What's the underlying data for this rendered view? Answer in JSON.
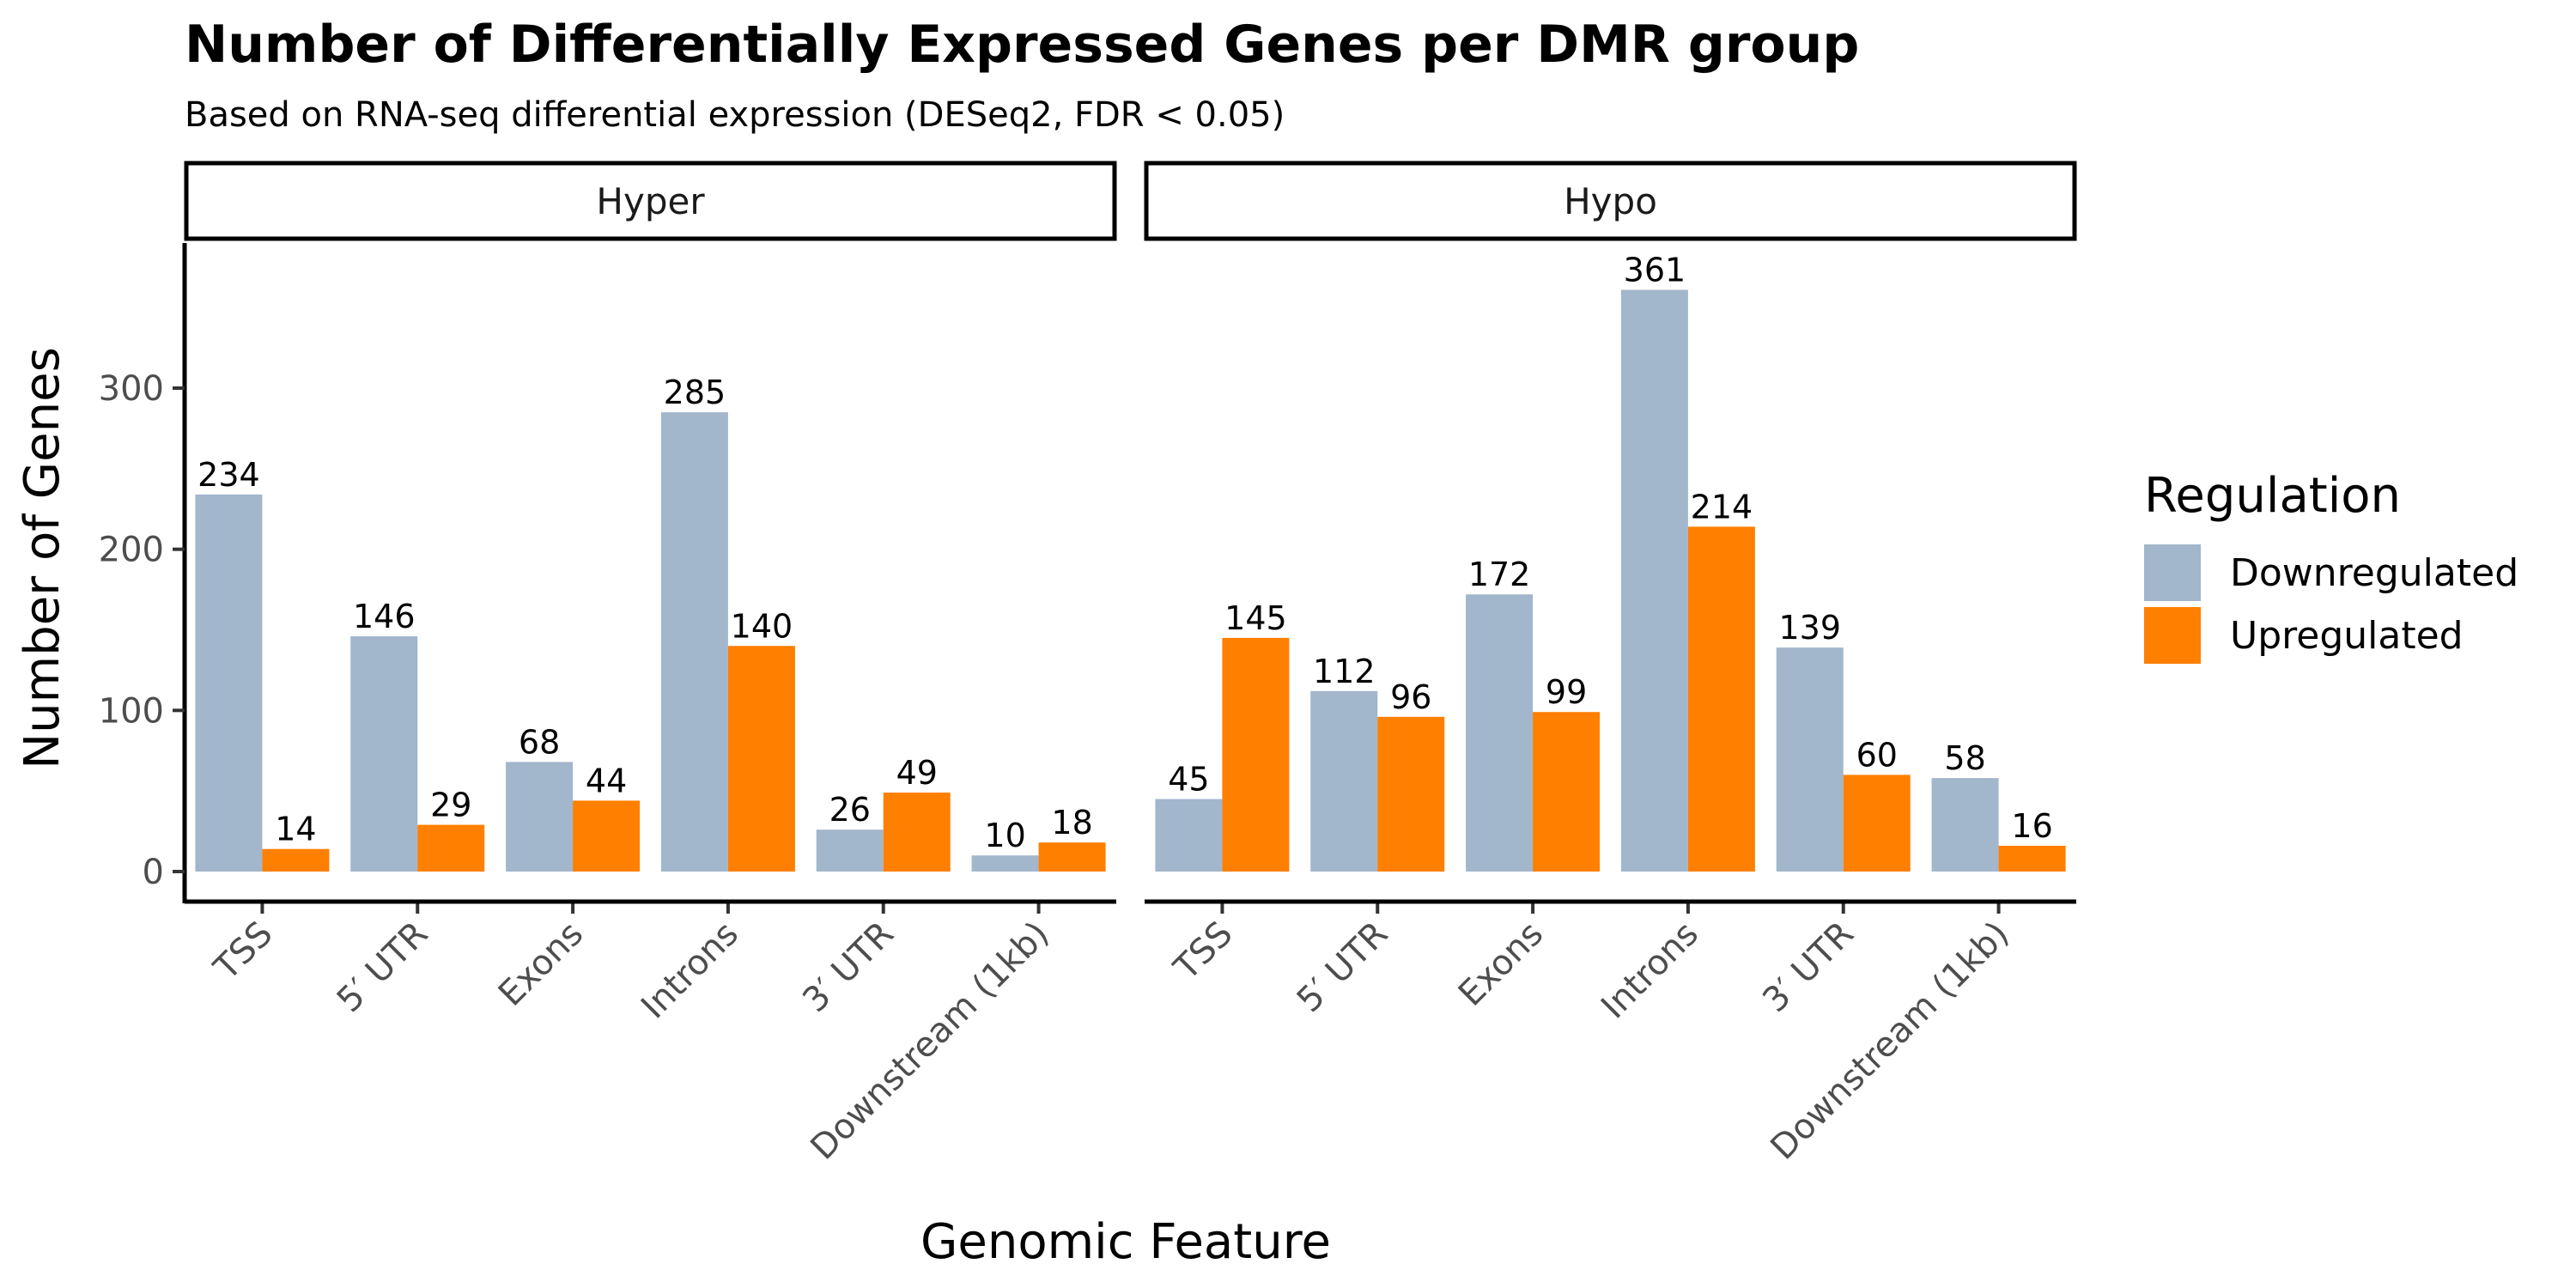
{
  "chart_data": {
    "type": "bar",
    "title": "Number of Differentially Expressed Genes per DMR group",
    "subtitle": "Based on RNA-seq differential expression (DESeq2, FDR < 0.05)",
    "xlabel": "Genomic Feature",
    "ylabel": "Number of Genes",
    "ylim": [
      0,
      380
    ],
    "yticks": [
      0,
      100,
      200,
      300
    ],
    "categories": [
      "TSS",
      "5′ UTR",
      "Exons",
      "Introns",
      "3′ UTR",
      "Downstream (1kb)"
    ],
    "legend": {
      "title": "Regulation",
      "placement": "right"
    },
    "colors": {
      "Downregulated": "#a2b6cc",
      "Upregulated": "#ff7f00"
    },
    "grid": false,
    "panels": [
      {
        "label": "Hyper",
        "series": [
          {
            "name": "Downregulated",
            "values": [
              234,
              146,
              68,
              285,
              26,
              10
            ]
          },
          {
            "name": "Upregulated",
            "values": [
              14,
              29,
              44,
              140,
              49,
              18
            ]
          }
        ]
      },
      {
        "label": "Hypo",
        "series": [
          {
            "name": "Downregulated",
            "values": [
              45,
              112,
              172,
              361,
              139,
              58
            ]
          },
          {
            "name": "Upregulated",
            "values": [
              145,
              96,
              99,
              214,
              60,
              16
            ]
          }
        ]
      }
    ]
  }
}
